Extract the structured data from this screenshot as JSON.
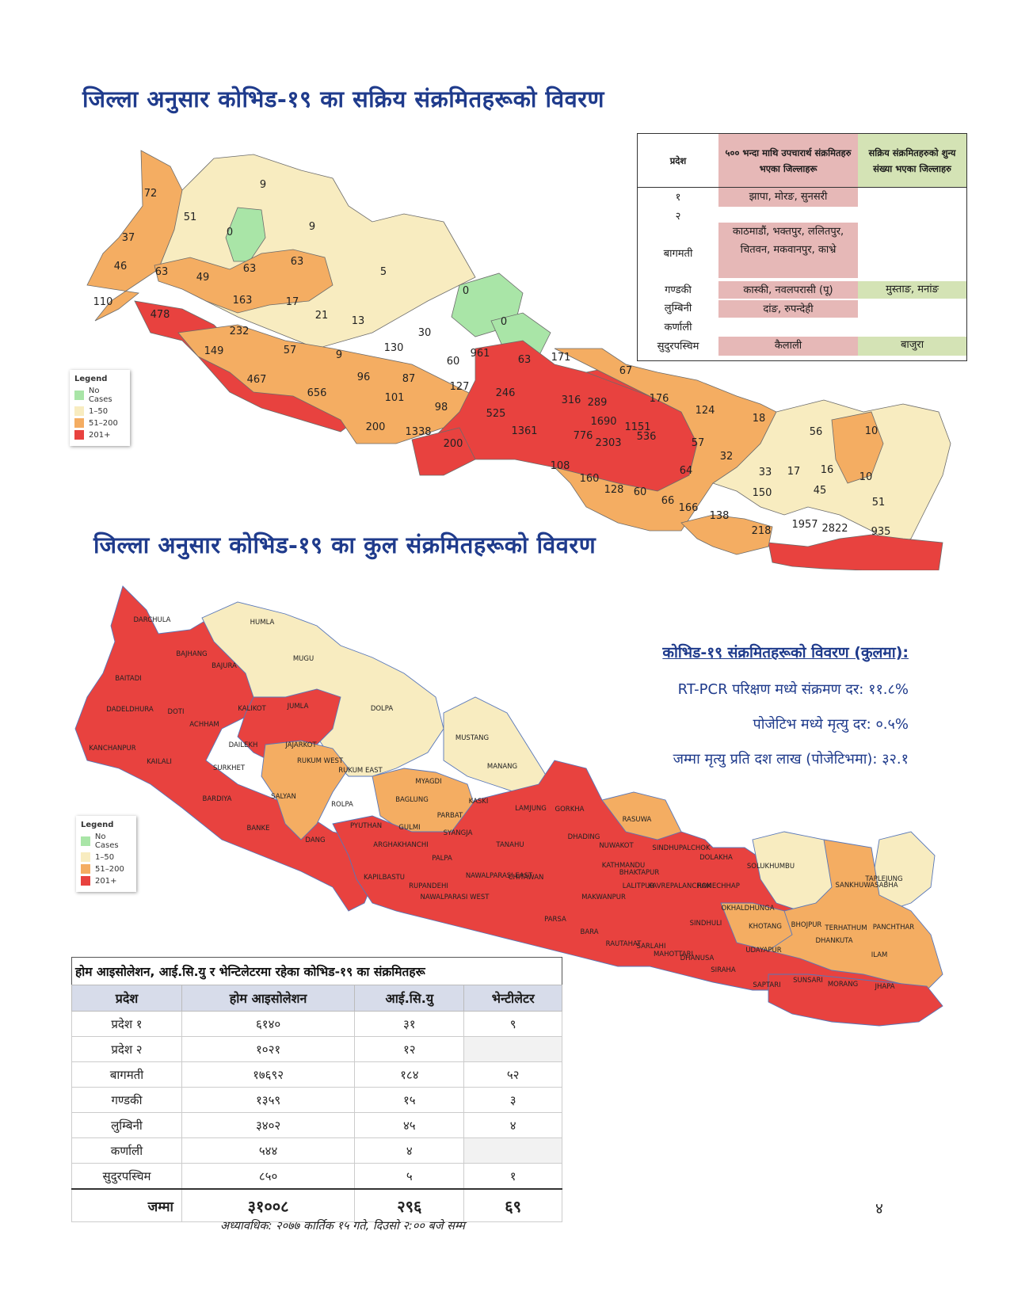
{
  "title_active": "जिल्ला अनुसार कोभिड-१९ का सक्रिय संक्रमितहरूको विवरण",
  "title_total": "जिल्ला अनुसार कोभिड-१९ का कुल संक्रमितहरूको विवरण",
  "colors": {
    "no_cases": "#a9e5a7",
    "c1_50": "#f8ecc0",
    "c51_200": "#f4ad62",
    "c201": "#e8423f"
  },
  "legend": {
    "title": "Legend",
    "items": [
      "No Cases",
      "1–50",
      "51–200",
      "201+"
    ]
  },
  "active_table": {
    "headers": [
      "प्रदेश",
      "५०० भन्दा माथि उपचारार्थ संक्रमितहरु भएका जिल्लाहरू",
      "सक्रिय संक्रमितहरुको शुन्य संख्या भएका जिल्लाहरु"
    ],
    "rows": [
      {
        "province": "१",
        "above500": "झापा, मोरङ, सुनसरी",
        "zero": ""
      },
      {
        "province": "२",
        "above500": "",
        "zero": ""
      },
      {
        "province": "बागमती",
        "above500": "काठमाडौं, भक्तपुर, ललितपुर, चितवन, मकवानपुर, काभ्रे",
        "zero": ""
      },
      {
        "province": "गण्डकी",
        "above500": "कास्की, नवलपरासी (पू)",
        "zero": "मुस्ताङ, मनांङ"
      },
      {
        "province": "लुम्बिनी",
        "above500": "दांङ, रुपन्देही",
        "zero": ""
      },
      {
        "province": "कर्णाली",
        "above500": "",
        "zero": ""
      },
      {
        "province": "सुदुरपस्चिम",
        "above500": "कैलाली",
        "zero": "बाजुरा"
      }
    ]
  },
  "active_labels": [
    "72",
    "9",
    "51",
    "0",
    "9",
    "37",
    "46",
    "63",
    "49",
    "63",
    "63",
    "5",
    "0",
    "110",
    "163",
    "17",
    "21",
    "13",
    "0",
    "478",
    "232",
    "30",
    "130",
    "149",
    "57",
    "9",
    "96",
    "87",
    "60",
    "961",
    "63",
    "171",
    "467",
    "656",
    "101",
    "127",
    "246",
    "316",
    "289",
    "67",
    "176",
    "98",
    "525",
    "124",
    "18",
    "1690",
    "1151",
    "536",
    "56",
    "10",
    "200",
    "1338",
    "200",
    "1361",
    "776",
    "2303",
    "57",
    "32",
    "108",
    "64",
    "33",
    "17",
    "16",
    "10",
    "160",
    "128",
    "60",
    "150",
    "45",
    "66",
    "166",
    "138",
    "51",
    "218",
    "1957",
    "2822",
    "935"
  ],
  "district_names": [
    "DARCHULA",
    "HUMLA",
    "BAJHANG",
    "BAJURA",
    "MUGU",
    "BAITADI",
    "DADELDHURA",
    "DOTI",
    "KALIKOT",
    "JUMLA",
    "DOLPA",
    "ACHHAM",
    "DAILEKH",
    "JAJARKOT",
    "MUSTANG",
    "KANCHANPUR",
    "KAILALI",
    "SURKHET",
    "RUKUM WEST",
    "RUKUM EAST",
    "MANANG",
    "MYAGDI",
    "BARDIYA",
    "SALYAN",
    "ROLPA",
    "BAGLUNG",
    "KASKI",
    "LAMJUNG",
    "GORKHA",
    "PARBAT",
    "RASUWA",
    "BANKE",
    "PYUTHAN",
    "GULMI",
    "SYANGJA",
    "DHADING",
    "NUWAKOT",
    "SINDHUPALCHOK",
    "DOLAKHA",
    "DANG",
    "ARGHAKHANCHI",
    "TANAHU",
    "PALPA",
    "KATHMANDU",
    "BHAKTAPUR",
    "LALITPUR",
    "KAVREPALANCHOK",
    "RAMECHHAP",
    "SOLUKHUMBU",
    "TAPLEJUNG",
    "SANKHUWASABHA",
    "KAPILBASTU",
    "RUPANDEHI",
    "NAWALPARASI WEST",
    "NAWALPARASI EAST",
    "CHITAWAN",
    "MAKWANPUR",
    "OKHALDHUNGA",
    "KHOTANG",
    "BHOJPUR",
    "TERHATHUM",
    "PANCHTHAR",
    "DHANKUTA",
    "ILAM",
    "PARSA",
    "BARA",
    "RAUTAHAT",
    "SARLAHI",
    "MAHOTTARI",
    "DHANUSA",
    "SINDHULI",
    "UDAYAPUR",
    "SIRAHA",
    "SAPTARI",
    "SUNSARI",
    "MORANG",
    "JHAPA"
  ],
  "stats": {
    "heading": "कोभिड-१९ संक्रमितहरूको विवरण (कुलमा):",
    "line1": "RT-PCR परिक्षण मध्ये संक्रमण दर: ११.८%",
    "line2": "पोजेटिभ मध्ये मृत्यु दर: ०.५%",
    "line3": "जम्मा मृत्यु प्रति दश लाख (पोजेटिभमा): ३२.१"
  },
  "isolation_table": {
    "caption": "होम आइसोलेशन, आई.सि.यु र भेन्टिलेटरमा रहेका कोभिड-१९ का संक्रमितहरू",
    "headers": [
      "प्रदेश",
      "होम आइसोलेशन",
      "आई.सि.यु",
      "भेन्टीलेटर"
    ],
    "rows": [
      [
        "प्रदेश १",
        "६१४०",
        "३१",
        "९"
      ],
      [
        "प्रदेश २",
        "१०२१",
        "१२",
        ""
      ],
      [
        "बागमती",
        "१७६९२",
        "१८४",
        "५२"
      ],
      [
        "गण्डकी",
        "१३५९",
        "१५",
        "३"
      ],
      [
        "लुम्बिनी",
        "३४०२",
        "४५",
        "४"
      ],
      [
        "कर्णाली",
        "५४४",
        "४",
        ""
      ],
      [
        "सुदुरपस्चिम",
        "८५०",
        "५",
        "१"
      ]
    ],
    "total": [
      "जम्मा",
      "३१००८",
      "२९६",
      "६९"
    ]
  },
  "footnote": "अध्यावधिक: २०७७ कार्तिक १५ गते, दिउसो २:०० बजे सम्म",
  "page_number": "४"
}
